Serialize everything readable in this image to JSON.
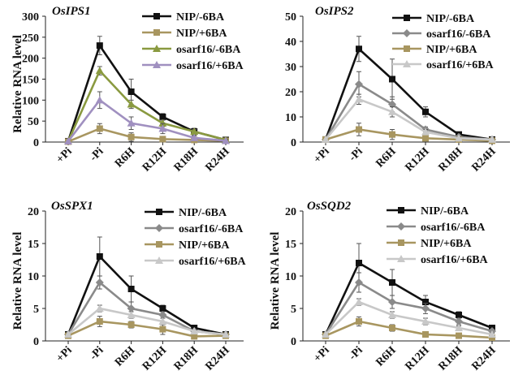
{
  "chart_data": [
    {
      "type": "line",
      "title": "OsIPS1",
      "ylabel": "Relative RNA level",
      "categories": [
        "+Pi",
        "-Pi",
        "R6H",
        "R12H",
        "R18H",
        "R24H"
      ],
      "ylim": [
        0,
        300
      ],
      "yticks": [
        0,
        50,
        100,
        150,
        200,
        250,
        300
      ],
      "series": [
        {
          "name": "NIP/-6BA",
          "color": "#111111",
          "marker": "square",
          "values": [
            2,
            230,
            120,
            60,
            25,
            5
          ],
          "errors": [
            0,
            22,
            30,
            8,
            8,
            2
          ]
        },
        {
          "name": "NIP/+6BA",
          "color": "#a89660",
          "marker": "square",
          "values": [
            1,
            32,
            12,
            7,
            5,
            3
          ],
          "errors": [
            0,
            12,
            10,
            3,
            2,
            1
          ]
        },
        {
          "name": "osarf16/-6BA",
          "color": "#8a9a40",
          "marker": "triangle",
          "values": [
            2,
            170,
            90,
            45,
            25,
            5
          ],
          "errors": [
            0,
            10,
            10,
            8,
            5,
            2
          ]
        },
        {
          "name": "osarf16/+6BA",
          "color": "#a090c0",
          "marker": "triangle",
          "values": [
            2,
            100,
            45,
            32,
            10,
            3
          ],
          "errors": [
            0,
            20,
            15,
            12,
            5,
            2
          ]
        }
      ]
    },
    {
      "type": "line",
      "title": "OsIPS2",
      "ylabel": "",
      "categories": [
        "+Pi",
        "-Pi",
        "R6H",
        "R12H",
        "R18H",
        "R24H"
      ],
      "ylim": [
        0,
        50
      ],
      "yticks": [
        0,
        10,
        20,
        30,
        40,
        50
      ],
      "series": [
        {
          "name": "NIP/-6BA",
          "color": "#111111",
          "marker": "square",
          "values": [
            1,
            37,
            25,
            12,
            3,
            1
          ],
          "errors": [
            0,
            5,
            8,
            2,
            0.5,
            0.3
          ]
        },
        {
          "name": "osarf16/-6BA",
          "color": "#8a8a8a",
          "marker": "diamond",
          "values": [
            1,
            23,
            15,
            5,
            2,
            1
          ],
          "errors": [
            0,
            5,
            3,
            1,
            0.5,
            0.3
          ]
        },
        {
          "name": "NIP/+6BA",
          "color": "#a89660",
          "marker": "square",
          "values": [
            1,
            5,
            3,
            1.5,
            1,
            0.5
          ],
          "errors": [
            0,
            2.5,
            2,
            0.5,
            0.3,
            0.2
          ]
        },
        {
          "name": "osarf16/+6BA",
          "color": "#c8c8c8",
          "marker": "triangle",
          "values": [
            1,
            17,
            12,
            4,
            1.5,
            1
          ],
          "errors": [
            0,
            2,
            2,
            1,
            0.5,
            0.3
          ]
        }
      ]
    },
    {
      "type": "line",
      "title": "OsSPX1",
      "ylabel": "Relative RNA level",
      "categories": [
        "+Pi",
        "-Pi",
        "R6H",
        "R12H",
        "R18H",
        "R24H"
      ],
      "ylim": [
        0,
        20
      ],
      "yticks": [
        0,
        5,
        10,
        15,
        20
      ],
      "series": [
        {
          "name": "NIP/-6BA",
          "color": "#111111",
          "marker": "square",
          "values": [
            1,
            13,
            8,
            5,
            2,
            1
          ],
          "errors": [
            0,
            3,
            2,
            0.5,
            0.3,
            0.2
          ]
        },
        {
          "name": "osarf16/-6BA",
          "color": "#8a8a8a",
          "marker": "diamond",
          "values": [
            1,
            9,
            5,
            4,
            1.5,
            1
          ],
          "errors": [
            0,
            1,
            1,
            0.5,
            0.3,
            0.2
          ]
        },
        {
          "name": "NIP/+6BA",
          "color": "#a89660",
          "marker": "square",
          "values": [
            0.8,
            3,
            2.5,
            1.8,
            0.7,
            0.8
          ],
          "errors": [
            0,
            0.8,
            0.5,
            0.8,
            0.3,
            0.2
          ]
        },
        {
          "name": "osarf16/+6BA",
          "color": "#c8c8c8",
          "marker": "triangle",
          "values": [
            1,
            5,
            4,
            3,
            1.5,
            1
          ],
          "errors": [
            0,
            0.5,
            0.5,
            0.5,
            0.3,
            0.2
          ]
        }
      ]
    },
    {
      "type": "line",
      "title": "OsSQD2",
      "ylabel": "Relative RNA level",
      "categories": [
        "+Pi",
        "-Pi",
        "R6H",
        "R12H",
        "R18H",
        "R24H"
      ],
      "ylim": [
        0,
        20
      ],
      "yticks": [
        0,
        5,
        10,
        15,
        20
      ],
      "series": [
        {
          "name": "NIP/-6BA",
          "color": "#111111",
          "marker": "square",
          "values": [
            1,
            12,
            9,
            6,
            4,
            2
          ],
          "errors": [
            0,
            3,
            2,
            1,
            0.5,
            0.3
          ]
        },
        {
          "name": "osarf16/-6BA",
          "color": "#8a8a8a",
          "marker": "diamond",
          "values": [
            1,
            9,
            6,
            5,
            3,
            1.5
          ],
          "errors": [
            0,
            1.5,
            1,
            0.8,
            0.5,
            0.3
          ]
        },
        {
          "name": "NIP/+6BA",
          "color": "#a89660",
          "marker": "square",
          "values": [
            0.8,
            3,
            2,
            1,
            0.8,
            0.5
          ],
          "errors": [
            0,
            0.7,
            0.5,
            0.3,
            0.3,
            0.2
          ]
        },
        {
          "name": "osarf16/+6BA",
          "color": "#c8c8c8",
          "marker": "triangle",
          "values": [
            1,
            6,
            4,
            3,
            2,
            1
          ],
          "errors": [
            0,
            0.5,
            0.5,
            0.5,
            0.3,
            0.2
          ]
        }
      ]
    }
  ]
}
